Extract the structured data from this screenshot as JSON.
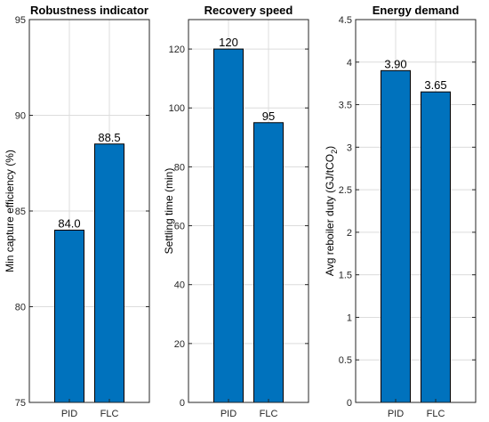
{
  "chart_data": [
    {
      "type": "bar",
      "title": "Robustness indicator",
      "ylabel": "Min capture efficiency (%)",
      "ylabel_sub": "",
      "ylabel_tail": "",
      "categories": [
        "PID",
        "FLC"
      ],
      "values": [
        84.0,
        88.5
      ],
      "value_labels": [
        "84.0",
        "88.5"
      ],
      "ylim": [
        75,
        95
      ],
      "yticks": [
        75,
        80,
        85,
        90,
        95
      ],
      "ytick_labels": [
        "75",
        "80",
        "85",
        "90",
        "95"
      ],
      "grid": true,
      "bar_color": "#0072BD"
    },
    {
      "type": "bar",
      "title": "Recovery speed",
      "ylabel": "Settling time (min)",
      "ylabel_sub": "",
      "ylabel_tail": "",
      "categories": [
        "PID",
        "FLC"
      ],
      "values": [
        120,
        95
      ],
      "value_labels": [
        "120",
        "95"
      ],
      "ylim": [
        0,
        130
      ],
      "yticks": [
        0,
        20,
        40,
        60,
        80,
        100,
        120
      ],
      "ytick_labels": [
        "0",
        "20",
        "40",
        "60",
        "80",
        "100",
        "120"
      ],
      "grid": true,
      "bar_color": "#0072BD"
    },
    {
      "type": "bar",
      "title": "Energy demand",
      "ylabel": "Avg reboiler duty (GJ/tCO",
      "ylabel_sub": "2",
      "ylabel_tail": ")",
      "categories": [
        "PID",
        "FLC"
      ],
      "values": [
        3.9,
        3.65
      ],
      "value_labels": [
        "3.90",
        "3.65"
      ],
      "ylim": [
        0,
        4.5
      ],
      "yticks": [
        0,
        0.5,
        1,
        1.5,
        2,
        2.5,
        3,
        3.5,
        4,
        4.5
      ],
      "ytick_labels": [
        "0",
        "0.5",
        "1",
        "1.5",
        "2",
        "2.5",
        "3",
        "3.5",
        "4",
        "4.5"
      ],
      "grid": true,
      "bar_color": "#0072BD"
    }
  ]
}
